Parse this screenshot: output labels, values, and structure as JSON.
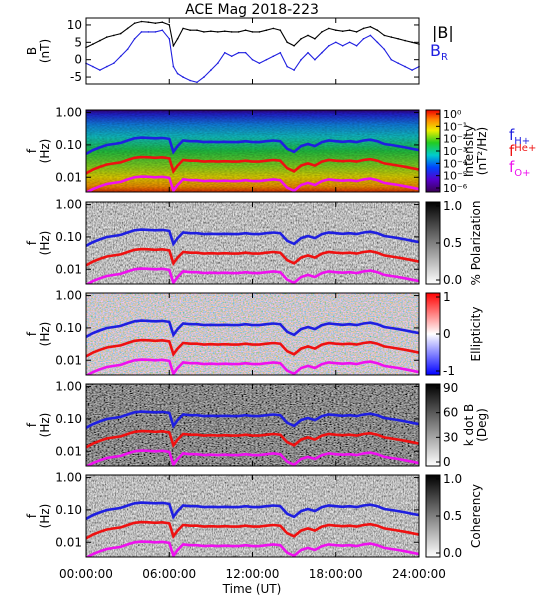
{
  "chart_data": {
    "title": "ACE Mag 2018-223",
    "xlabel": "Time (UT)",
    "x_ticks": [
      "00:00:00",
      "06:00:00",
      "12:00:00",
      "18:00:00",
      "24:00:00"
    ],
    "x_range_hours": [
      0,
      24
    ],
    "panels": [
      {
        "type": "line",
        "ylabel_line1": "B",
        "ylabel_line2": "(nT)",
        "y_range": [
          -7,
          12
        ],
        "y_ticks": [
          "10",
          "5",
          "0",
          "-5"
        ],
        "y_tick_values": [
          10,
          5,
          0,
          -5
        ],
        "legend": [
          "|B|",
          "B"
        ],
        "legend_subscript": "R",
        "series": [
          {
            "name": "|B|",
            "color": "#000000",
            "x": [
              0,
              0.5,
              1,
              1.5,
              2,
              2.5,
              3,
              3.5,
              4,
              4.5,
              5,
              5.5,
              6,
              6.3,
              6.6,
              7,
              7.5,
              8,
              8.5,
              9,
              9.5,
              10,
              10.5,
              11,
              11.5,
              12,
              12.5,
              13,
              13.5,
              14,
              14.5,
              15,
              15.5,
              16,
              16.5,
              17,
              17.5,
              18,
              18.5,
              19,
              19.5,
              20,
              20.5,
              21,
              21.5,
              22,
              22.5,
              23,
              23.5,
              24
            ],
            "y": [
              3.5,
              4.5,
              5.5,
              6.5,
              7,
              7.5,
              9,
              10.5,
              11,
              10.8,
              10.5,
              10.8,
              10,
              4,
              6,
              9,
              8.5,
              8.5,
              8,
              8.2,
              8,
              8.2,
              8,
              8,
              8.5,
              8,
              8,
              8.5,
              9,
              8.5,
              5,
              4,
              6,
              7,
              6,
              8,
              9,
              8.5,
              8.2,
              8.5,
              8,
              9,
              9.5,
              8.5,
              7,
              6.5,
              6,
              5.5,
              5,
              4.5
            ]
          },
          {
            "name": "B",
            "color": "#1f1fe0",
            "x": [
              0,
              0.5,
              1,
              1.5,
              2,
              2.5,
              3,
              3.5,
              4,
              4.5,
              5,
              5.5,
              6,
              6.3,
              6.6,
              7,
              7.5,
              8,
              8.5,
              9,
              9.5,
              10,
              10.5,
              11,
              11.5,
              12,
              12.5,
              13,
              13.5,
              14,
              14.5,
              15,
              15.5,
              16,
              16.5,
              17,
              17.5,
              18,
              18.5,
              19,
              19.5,
              20,
              20.5,
              21,
              21.5,
              22,
              22.5,
              23,
              23.5,
              24
            ],
            "y": [
              -1,
              -2,
              -3,
              -2,
              -1,
              1,
              3,
              6,
              8,
              8,
              8,
              8.5,
              6,
              -2,
              -4,
              -5,
              -6,
              -6.5,
              -5,
              -3,
              -1,
              2,
              1,
              2,
              2,
              0,
              -1,
              0,
              1,
              2,
              -2,
              -3,
              0,
              2,
              0,
              2,
              4,
              5,
              4,
              5,
              4,
              6,
              7,
              5,
              3,
              0,
              -1,
              -2,
              -3,
              -2
            ]
          }
        ]
      },
      {
        "type": "heatmap",
        "ylabel_line1": "f",
        "ylabel_line2": "(Hz)",
        "y_ticks": [
          "1.00",
          "0.10",
          "0.01"
        ],
        "colorbar_label_line1": "Intensity",
        "colorbar_label_line2": "(nT²/Hz)",
        "colorbar_ticks": [
          "10⁰",
          "10⁻¹",
          "10⁻²",
          "10⁻³",
          "10⁻⁴",
          "10⁻⁵",
          "10⁻⁶"
        ],
        "colorscale": "rainbow"
      },
      {
        "type": "heatmap",
        "ylabel_line1": "f",
        "ylabel_line2": "(Hz)",
        "y_ticks": [
          "1.00",
          "0.10",
          "0.01"
        ],
        "colorbar_label_line1": "% Polarization",
        "colorbar_label_line2": "",
        "colorbar_ticks": [
          "1.0",
          "0.5",
          "0.0"
        ],
        "colorscale": "gray"
      },
      {
        "type": "heatmap",
        "ylabel_line1": "f",
        "ylabel_line2": "(Hz)",
        "y_ticks": [
          "1.00",
          "0.10",
          "0.01"
        ],
        "colorbar_label_line1": "Ellipticity",
        "colorbar_label_line2": "",
        "colorbar_ticks": [
          "1",
          "0",
          "-1"
        ],
        "colorscale": "bwr"
      },
      {
        "type": "heatmap",
        "ylabel_line1": "f",
        "ylabel_line2": "(Hz)",
        "y_ticks": [
          "1.00",
          "0.10",
          "0.01"
        ],
        "colorbar_label_line1": "k dot B",
        "colorbar_label_line2": "(Deg)",
        "colorbar_ticks": [
          "90",
          "60",
          "30",
          "0"
        ],
        "colorscale": "gray"
      },
      {
        "type": "heatmap",
        "ylabel_line1": "f",
        "ylabel_line2": "(Hz)",
        "y_ticks": [
          "1.00",
          "0.10",
          "0.01"
        ],
        "colorbar_label_line1": "Coherency",
        "colorbar_label_line2": "",
        "colorbar_ticks": [
          "1.0",
          "0.5",
          "0.0"
        ],
        "colorscale": "gray"
      }
    ],
    "gyro_lines": {
      "x": [
        0,
        0.5,
        1,
        1.5,
        2,
        2.5,
        3,
        3.5,
        4,
        4.5,
        5,
        5.5,
        6,
        6.3,
        6.6,
        7,
        7.5,
        8,
        8.5,
        9,
        9.5,
        10,
        10.5,
        11,
        11.5,
        12,
        12.5,
        13,
        13.5,
        14,
        14.5,
        15,
        15.5,
        16,
        16.5,
        17,
        17.5,
        18,
        18.5,
        19,
        19.5,
        20,
        20.5,
        21,
        21.5,
        22,
        22.5,
        23,
        23.5,
        24
      ],
      "f_h": [
        0.053,
        0.069,
        0.084,
        0.099,
        0.107,
        0.115,
        0.137,
        0.16,
        0.168,
        0.165,
        0.16,
        0.165,
        0.153,
        0.061,
        0.092,
        0.137,
        0.13,
        0.13,
        0.122,
        0.125,
        0.122,
        0.125,
        0.122,
        0.122,
        0.13,
        0.122,
        0.122,
        0.13,
        0.137,
        0.13,
        0.076,
        0.061,
        0.092,
        0.107,
        0.092,
        0.122,
        0.137,
        0.13,
        0.125,
        0.13,
        0.122,
        0.137,
        0.145,
        0.13,
        0.107,
        0.099,
        0.092,
        0.084,
        0.076,
        0.069
      ]
    },
    "gyro_legend": [
      {
        "label": "f",
        "subscript": "H+",
        "color": "#1f1fe0"
      },
      {
        "label": "f",
        "subscript": "He+",
        "color": "#ee1111"
      },
      {
        "label": "f",
        "subscript": "O+",
        "color": "#ee11ee"
      }
    ]
  }
}
